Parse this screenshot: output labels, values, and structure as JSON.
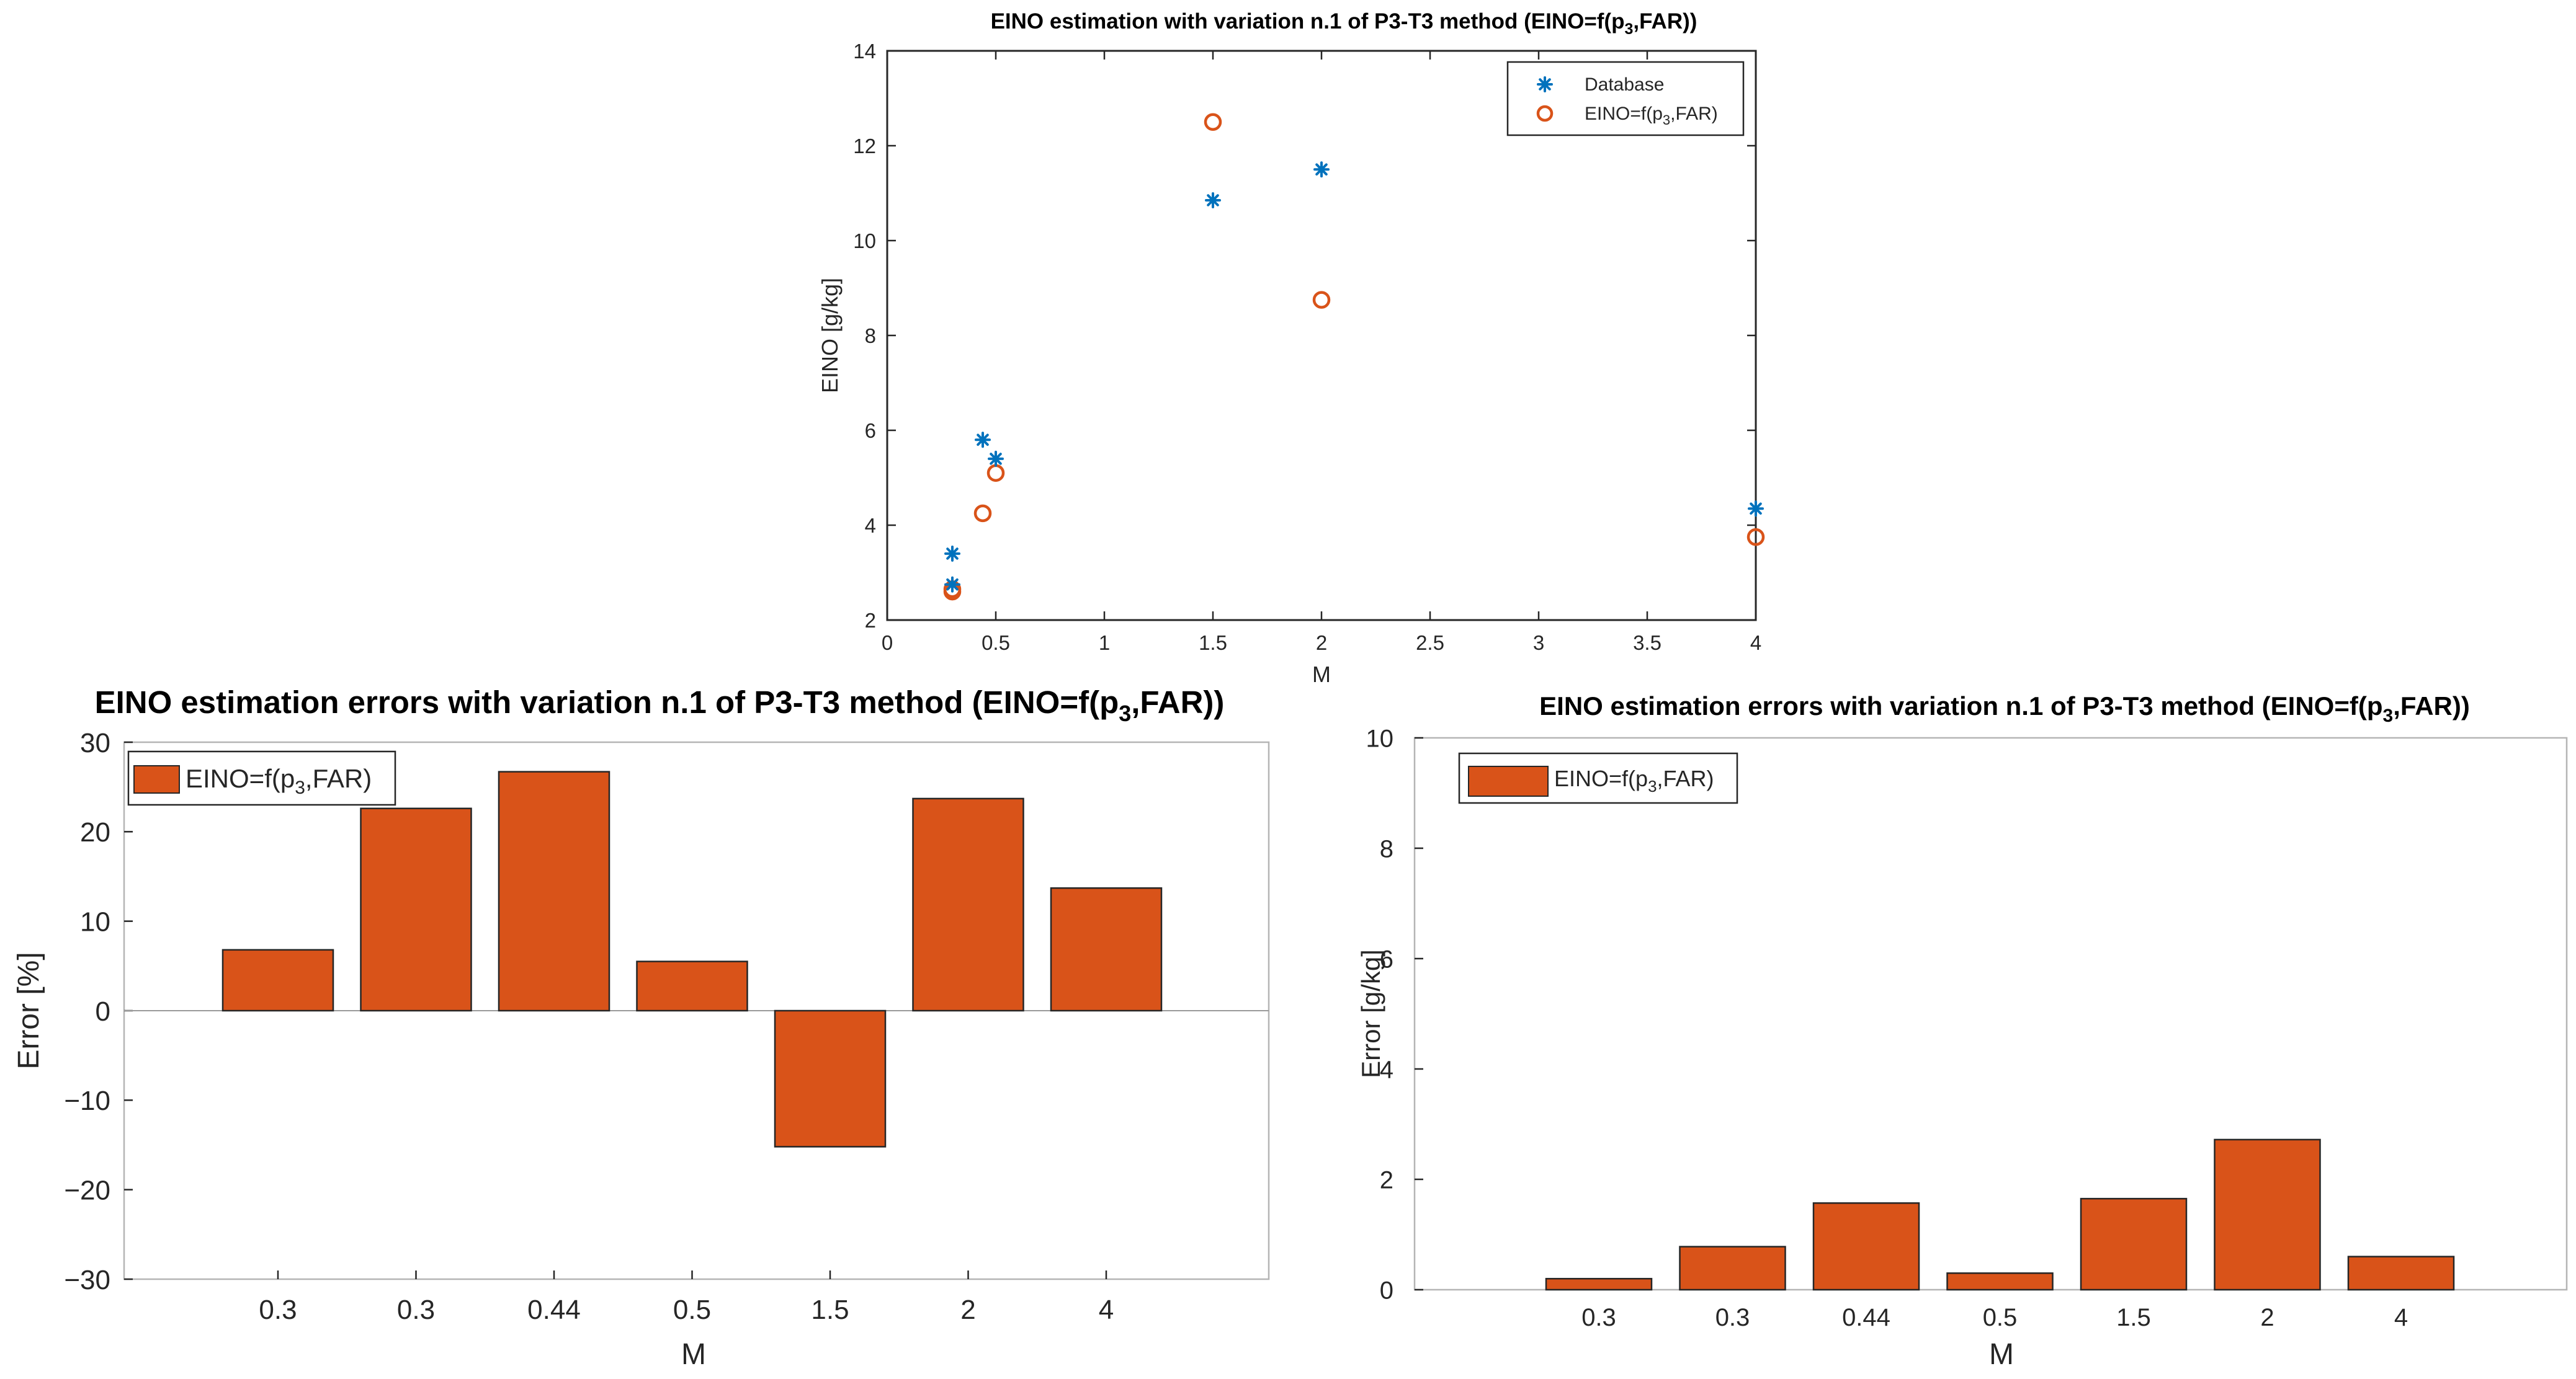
{
  "chart_data": [
    {
      "type": "scatter",
      "title": "EINO estimation with variation n.1 of P3-T3 method (EINO=f(p",
      "title_sub": "3",
      "title_tail": ",FAR))",
      "xlabel": "M",
      "ylabel": "EINO [g/kg]",
      "xlim": [
        0,
        4
      ],
      "ylim": [
        2,
        14
      ],
      "xticks": [
        0,
        0.5,
        1,
        1.5,
        2,
        2.5,
        3,
        3.5,
        4
      ],
      "xtick_labels": [
        "0",
        "0.5",
        "1",
        "1.5",
        "2",
        "2.5",
        "3",
        "3.5",
        "4"
      ],
      "yticks": [
        2,
        4,
        6,
        8,
        10,
        12,
        14
      ],
      "ytick_labels": [
        "2",
        "4",
        "6",
        "8",
        "10",
        "12",
        "14"
      ],
      "legend_position": "top-right",
      "series": [
        {
          "name": "Database",
          "marker": "asterisk",
          "color": "#0072BD",
          "points": [
            [
              0.3,
              3.4
            ],
            [
              0.3,
              2.75
            ],
            [
              0.44,
              5.8
            ],
            [
              0.5,
              5.4
            ],
            [
              1.5,
              10.85
            ],
            [
              2,
              11.5
            ],
            [
              4,
              4.35
            ]
          ]
        },
        {
          "name": "EINO=f(p",
          "name_sub": "3",
          "name_tail": ",FAR)",
          "marker": "circle",
          "color": "#D95319",
          "points": [
            [
              0.3,
              2.65
            ],
            [
              0.3,
              2.6
            ],
            [
              0.44,
              4.25
            ],
            [
              0.5,
              5.1
            ],
            [
              1.5,
              12.5
            ],
            [
              2,
              8.75
            ],
            [
              4,
              3.75
            ]
          ]
        }
      ]
    },
    {
      "type": "bar",
      "title": "EINO estimation errors with variation n.1 of P3-T3 method (EINO=f(p",
      "title_sub": "3",
      "title_tail": ",FAR))",
      "xlabel": "M",
      "ylabel": "Error [%]",
      "ylim": [
        -30,
        30
      ],
      "yticks": [
        -30,
        -20,
        -10,
        0,
        10,
        20,
        30
      ],
      "ytick_labels": [
        "−30",
        "−20",
        "−10",
        "0",
        "10",
        "20",
        "30"
      ],
      "categories": [
        "0.3",
        "0.3",
        "0.44",
        "0.5",
        "1.5",
        "2",
        "4"
      ],
      "legend_position": "top-left",
      "series": [
        {
          "name": "EINO=f(p",
          "name_sub": "3",
          "name_tail": ",FAR)",
          "color": "#D95319",
          "values": [
            6.8,
            22.6,
            26.7,
            5.5,
            -15.2,
            23.7,
            13.7
          ]
        }
      ]
    },
    {
      "type": "bar",
      "title": "EINO estimation errors with variation n.1 of P3-T3 method (EINO=f(p",
      "title_sub": "3",
      "title_tail": ",FAR))",
      "xlabel": "M",
      "ylabel": "Error [g/kg]",
      "ylim": [
        0,
        10
      ],
      "yticks": [
        0,
        2,
        4,
        6,
        8,
        10
      ],
      "ytick_labels": [
        "0",
        "2",
        "4",
        "6",
        "8",
        "10"
      ],
      "categories": [
        "0.3",
        "0.3",
        "0.44",
        "0.5",
        "1.5",
        "2",
        "4"
      ],
      "legend_position": "top-left",
      "series": [
        {
          "name": "EINO=f(p",
          "name_sub": "3",
          "name_tail": ",FAR)",
          "color": "#D95319",
          "values": [
            0.2,
            0.78,
            1.57,
            0.3,
            1.65,
            2.72,
            0.6
          ]
        }
      ]
    }
  ]
}
